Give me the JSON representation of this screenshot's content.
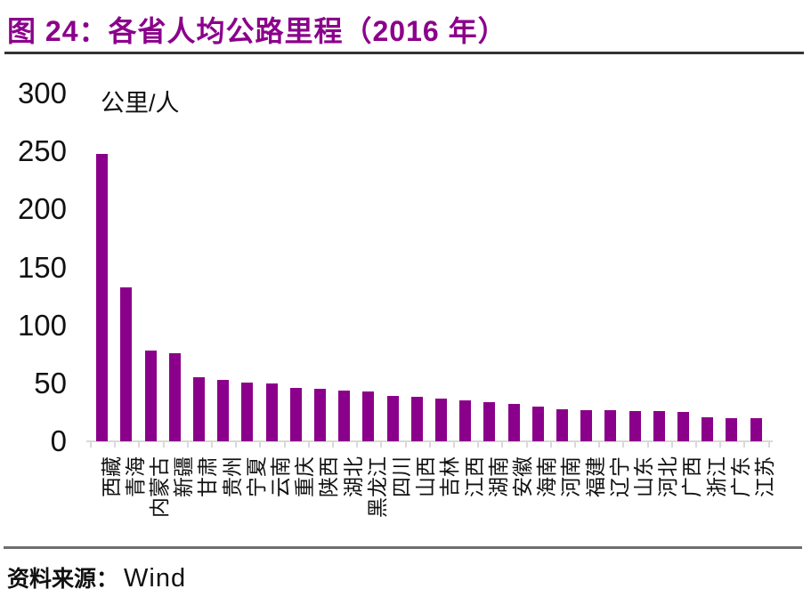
{
  "title": "图 24：各省人均公路里程（2016 年）",
  "source": {
    "prefix": "资料来源：",
    "name": "Wind"
  },
  "colors": {
    "bar": "#8B008B",
    "accent": "#8B008B",
    "axis": "#D9D9D9",
    "title_rule": "#333333",
    "source_rule": "#6E6E6E"
  },
  "chart_data": {
    "type": "bar",
    "title": "图 24：各省人均公路里程（2016 年）",
    "unit_label": "公里/人",
    "categories": [
      "西藏",
      "青海",
      "内蒙古",
      "新疆",
      "甘肃",
      "贵州",
      "宁夏",
      "云南",
      "重庆",
      "陕西",
      "湖北",
      "黑龙江",
      "四川",
      "山西",
      "吉林",
      "江西",
      "湖南",
      "安徽",
      "海南",
      "河南",
      "福建",
      "辽宁",
      "山东",
      "河北",
      "广西",
      "浙江",
      "广东",
      "江苏"
    ],
    "values": [
      248,
      133,
      78,
      76,
      55,
      53,
      51,
      50,
      46,
      45,
      44,
      43,
      39,
      38,
      37,
      35,
      34,
      32,
      30,
      28,
      27,
      27,
      26,
      26,
      25,
      21,
      20,
      20
    ],
    "xlabel": "",
    "ylabel": "公里/人",
    "ylim": [
      0,
      300
    ],
    "yticks": [
      0,
      50,
      100,
      150,
      200,
      250,
      300
    ],
    "grid": false,
    "legend": "none",
    "bar_color": "#8B008B",
    "x_label_rotation": -90,
    "source": "资料来源：Wind"
  }
}
